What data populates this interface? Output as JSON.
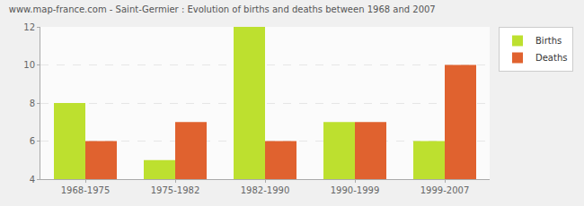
{
  "chart_data": {
    "type": "bar",
    "title": "www.map-france.com - Saint-Germier : Evolution of births and deaths between 1968 and 2007",
    "categories": [
      "1968-1975",
      "1975-1982",
      "1982-1990",
      "1990-1999",
      "1999-2007"
    ],
    "series": [
      {
        "name": "Births",
        "color": "#bde02f",
        "values": [
          8,
          5,
          12,
          7,
          6
        ]
      },
      {
        "name": "Deaths",
        "color": "#e0622f",
        "values": [
          6,
          7,
          6,
          7,
          10
        ]
      }
    ],
    "ylim": [
      4,
      12
    ],
    "yticks": [
      4,
      6,
      8,
      10,
      12
    ],
    "grid": true,
    "legend": "upper right"
  }
}
